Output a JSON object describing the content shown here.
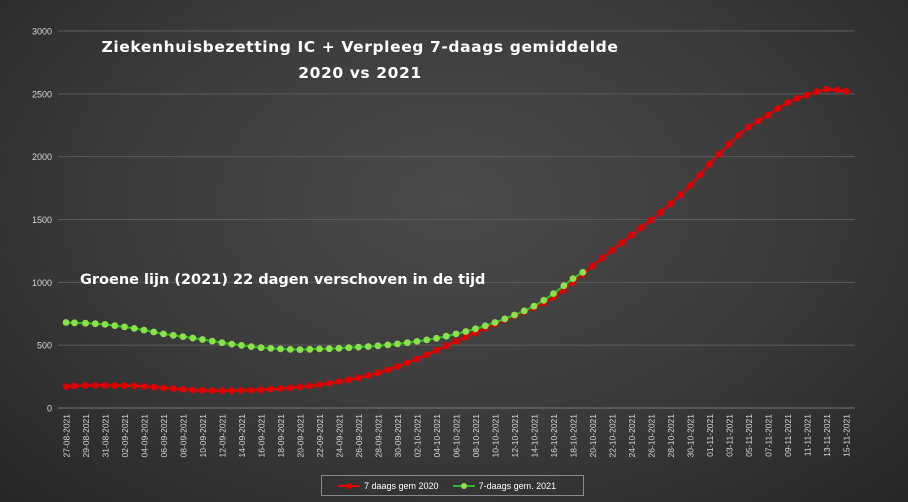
{
  "chart_data": {
    "type": "line",
    "title_line1": "Ziekenhuisbezetting IC + Verpleeg 7-daags gemiddelde",
    "title_line2": "2020 vs 2021",
    "annotation": "Groene lijn (2021) 22 dagen verschoven in de tijd",
    "ylim": [
      0,
      3000
    ],
    "yticks": [
      0,
      500,
      1000,
      1500,
      2000,
      2500,
      3000
    ],
    "grid": true,
    "legend_position": "bottom",
    "x_start": "27-08-2021",
    "x_end": "15-11-2021",
    "x_labels": [
      "27-08-2021",
      "29-08-2021",
      "31-08-2021",
      "02-09-2021",
      "04-09-2021",
      "06-09-2021",
      "08-09-2021",
      "10-09-2021",
      "12-09-2021",
      "14-09-2021",
      "16-09-2021",
      "18-09-2021",
      "20-09-2021",
      "22-09-2021",
      "24-09-2021",
      "26-09-2021",
      "28-09-2021",
      "30-09-2021",
      "02-10-2021",
      "04-10-2021",
      "06-10-2021",
      "08-10-2021",
      "10-10-2021",
      "12-10-2021",
      "14-10-2021",
      "16-10-2021",
      "18-10-2021",
      "20-10-2021",
      "22-10-2021",
      "24-10-2021",
      "26-10-2021",
      "28-10-2021",
      "30-10-2021",
      "01-11-2021",
      "03-11-2021",
      "05-11-2021",
      "07-11-2021",
      "09-11-2021",
      "11-11-2021",
      "13-11-2021",
      "15-11-2021"
    ],
    "series": [
      {
        "name": "7 daags gem 2020",
        "color": "#e00000",
        "x": [
          "27-08-2021",
          "29-08-2021",
          "31-08-2021",
          "02-09-2021",
          "04-09-2021",
          "06-09-2021",
          "08-09-2021",
          "10-09-2021",
          "12-09-2021",
          "14-09-2021",
          "16-09-2021",
          "18-09-2021",
          "20-09-2021",
          "22-09-2021",
          "24-09-2021",
          "26-09-2021",
          "28-09-2021",
          "30-09-2021",
          "02-10-2021",
          "04-10-2021",
          "06-10-2021",
          "08-10-2021",
          "10-10-2021",
          "12-10-2021",
          "14-10-2021",
          "16-10-2021",
          "18-10-2021",
          "20-10-2021",
          "22-10-2021",
          "24-10-2021",
          "26-10-2021",
          "28-10-2021",
          "30-10-2021",
          "01-11-2021",
          "03-11-2021",
          "05-11-2021",
          "07-11-2021",
          "09-11-2021",
          "11-11-2021",
          "13-11-2021",
          "15-11-2021"
        ],
        "values": [
          170,
          180,
          180,
          178,
          172,
          160,
          148,
          140,
          138,
          140,
          145,
          155,
          168,
          185,
          210,
          240,
          280,
          330,
          390,
          460,
          530,
          600,
          670,
          735,
          800,
          880,
          1000,
          1130,
          1255,
          1375,
          1495,
          1625,
          1770,
          1940,
          2100,
          2235,
          2330,
          2430,
          2490,
          2535,
          2520
        ]
      },
      {
        "name": "7-daags gem. 2021",
        "color": "#2eb82e",
        "marker_color": "#8ee04a",
        "x": [
          "27-08-2021",
          "29-08-2021",
          "31-08-2021",
          "02-09-2021",
          "04-09-2021",
          "06-09-2021",
          "08-09-2021",
          "10-09-2021",
          "12-09-2021",
          "14-09-2021",
          "16-09-2021",
          "18-09-2021",
          "20-09-2021",
          "22-09-2021",
          "24-09-2021",
          "26-09-2021",
          "28-09-2021",
          "30-09-2021",
          "02-10-2021",
          "04-10-2021",
          "06-10-2021",
          "08-10-2021",
          "10-10-2021",
          "12-10-2021",
          "14-10-2021",
          "16-10-2021",
          "18-10-2021",
          "19-10-2021"
        ],
        "values": [
          680,
          675,
          665,
          645,
          620,
          590,
          568,
          545,
          520,
          498,
          480,
          470,
          465,
          470,
          475,
          485,
          495,
          510,
          530,
          555,
          590,
          630,
          680,
          740,
          810,
          910,
          1030,
          1080
        ]
      }
    ]
  }
}
